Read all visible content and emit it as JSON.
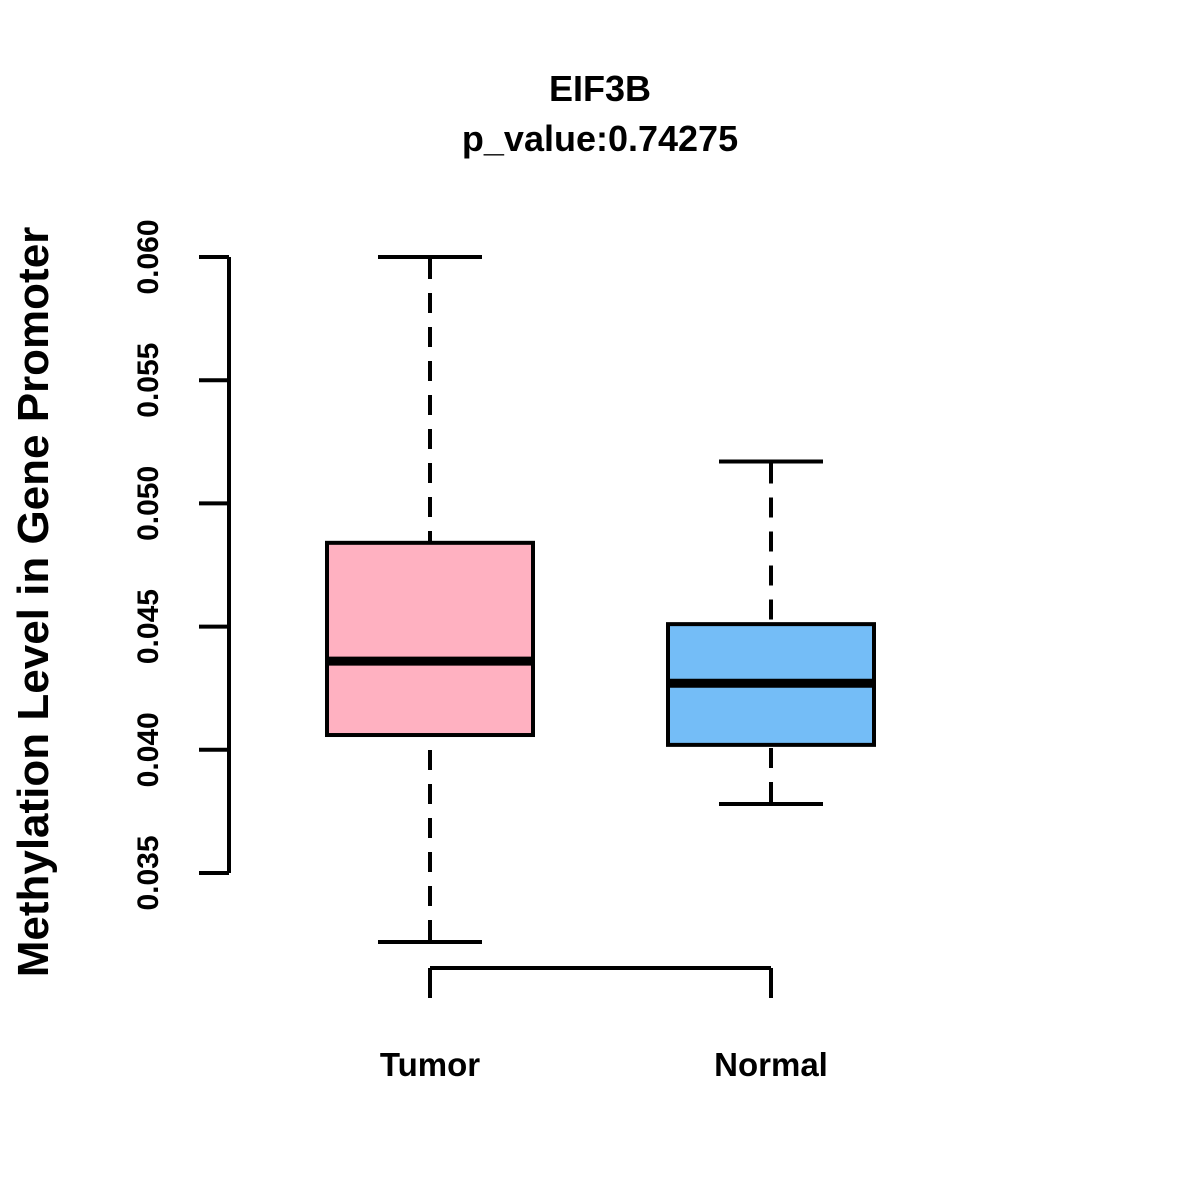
{
  "figure": {
    "background_color": "#FFFFFF",
    "text_color": "#000000",
    "axis_color": "#000000"
  },
  "chart_data": {
    "type": "boxplot",
    "title": "EIF3B",
    "subtitle": "p_value:0.74275",
    "ylabel": "Methylation Level in Gene Promoter",
    "xlabel": "",
    "ylim": [
      0.035,
      0.06
    ],
    "yticks": [
      "0.035",
      "0.040",
      "0.045",
      "0.050",
      "0.055",
      "0.060"
    ],
    "grid": false,
    "legend": "none",
    "categories": [
      "Tumor",
      "Normal"
    ],
    "series": [
      {
        "name": "Tumor",
        "box_color": "#FFB1C1",
        "whisker_low": 0.0322,
        "q1": 0.0406,
        "median": 0.0436,
        "q3": 0.0484,
        "whisker_high": 0.06
      },
      {
        "name": "Normal",
        "box_color": "#74BDF7",
        "whisker_low": 0.0378,
        "q1": 0.0402,
        "median": 0.0427,
        "q3": 0.0451,
        "whisker_high": 0.0517
      }
    ]
  }
}
